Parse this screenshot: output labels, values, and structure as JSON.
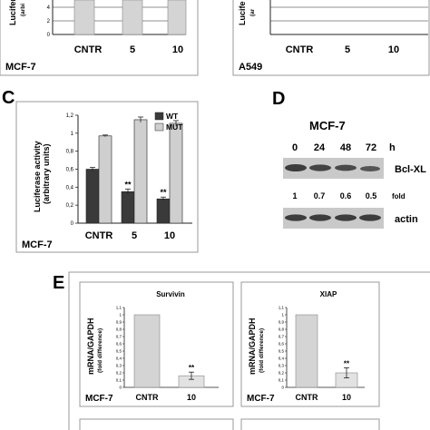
{
  "panels": {
    "top_left": {
      "cell_line": "MCF-7",
      "ylabel": "Lucifera",
      "ylabel2": "(arbi",
      "categories": [
        "CNTR",
        "5",
        "10"
      ]
    },
    "top_right": {
      "cell_line": "A549",
      "ylabel": "Lucife",
      "ylabel2": "(ar",
      "categories": [
        "CNTR",
        "5",
        "10"
      ]
    },
    "C": {
      "letter": "C",
      "cell_line": "MCF-7"
    },
    "D": {
      "letter": "D",
      "cell_line": "MCF-7",
      "timepoints": [
        "0",
        "24",
        "48",
        "72"
      ],
      "time_unit": "h",
      "band1_label": "Bcl-XL",
      "band2_label": "actin",
      "folds": [
        "1",
        "0.7",
        "0.6",
        "0.5"
      ],
      "fold_label": "fold"
    },
    "E": {
      "letter": "E"
    }
  },
  "colors": {
    "wt": "#3a3a3a",
    "mut": "#cfcfcf",
    "cntr": "#d4d4d4",
    "treated": "#e2e2e2",
    "blot_band": "#3c3c3c",
    "blot_bg": "#c9c9c9"
  },
  "chart_data": [
    {
      "type": "bar",
      "panel": "C",
      "title": "",
      "xlabel": "",
      "ylabel": "Luciferase activity",
      "ylabel2": "(arbitrary units)",
      "categories": [
        "CNTR",
        "5",
        "10"
      ],
      "series": [
        {
          "name": "WT",
          "values": [
            0.6,
            0.35,
            0.27
          ],
          "errors": [
            0.02,
            0.03,
            0.02
          ],
          "color": "#3a3a3a"
        },
        {
          "name": "MUT",
          "values": [
            0.97,
            1.15,
            1.11
          ],
          "errors": [
            0.01,
            0.03,
            0.03
          ],
          "color": "#cfcfcf"
        }
      ],
      "significance": [
        "",
        "**",
        "**"
      ],
      "yticks": [
        "0",
        "0,2",
        "0,4",
        "0,6",
        "0,8",
        "1",
        "1,2"
      ],
      "ylim": [
        0,
        1.2
      ],
      "legend": "top-right",
      "grid": false
    },
    {
      "type": "bar",
      "panel": "E",
      "title": "Survivin",
      "xlabel": "",
      "ylabel": "mRNA/GAPDH",
      "ylabel2": "(fold difference)",
      "cell_line": "MCF-7",
      "categories": [
        "CNTR",
        "10"
      ],
      "values": [
        1.0,
        0.16
      ],
      "errors": [
        0,
        0.05
      ],
      "significance": [
        "",
        "**"
      ],
      "yticks": [
        "0",
        "0,1",
        "0,2",
        "0,3",
        "0,4",
        "0,5",
        "0,6",
        "0,7",
        "0,8",
        "0,9",
        "1",
        "1,1"
      ],
      "ylim": [
        0,
        1.1
      ],
      "grid": false
    },
    {
      "type": "bar",
      "panel": "E",
      "title": "XIAP",
      "xlabel": "",
      "ylabel": "mRNA/GAPDH",
      "ylabel2": "(fold difference)",
      "cell_line": "MCF-7",
      "categories": [
        "CNTR",
        "10"
      ],
      "values": [
        1.0,
        0.2
      ],
      "errors": [
        0,
        0.07
      ],
      "significance": [
        "",
        "**"
      ],
      "yticks": [
        "0",
        "0,1",
        "0,2",
        "0,3",
        "0,4",
        "0,5",
        "0,6",
        "0,7",
        "0,8",
        "0,9",
        "1",
        "1,1"
      ],
      "ylim": [
        0,
        1.1
      ],
      "grid": false
    }
  ]
}
